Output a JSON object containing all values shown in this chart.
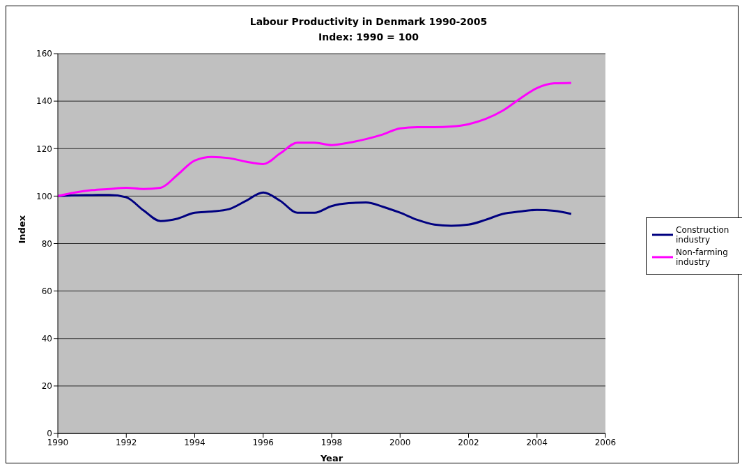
{
  "chart_data": {
    "type": "line",
    "title": "Labour Productivity in Denmark 1990-2005",
    "subtitle": "Index: 1990 = 100",
    "xlabel": "Year",
    "ylabel": "Index",
    "x": [
      1990,
      1990.5,
      1991,
      1991.5,
      1992,
      1992.5,
      1993,
      1993.5,
      1994,
      1994.5,
      1995,
      1995.5,
      1996,
      1996.5,
      1997,
      1997.5,
      1998,
      1998.5,
      1999,
      1999.5,
      2000,
      2000.5,
      2001,
      2001.5,
      2002,
      2002.5,
      2003,
      2003.5,
      2004,
      2004.5,
      2005
    ],
    "series": [
      {
        "name": "Construction industry",
        "color": "#000080",
        "values": [
          100,
          100.3,
          100.4,
          100.5,
          99.5,
          94,
          89.5,
          90.5,
          93,
          93.5,
          94.5,
          98,
          101.5,
          98,
          93,
          93,
          95.8,
          97,
          97.3,
          95.5,
          93,
          90,
          88,
          87.5,
          88,
          90,
          92.5,
          93.5,
          94.2,
          93.8,
          92.5
        ]
      },
      {
        "name": "Non-farming industry",
        "color": "#ff00ff",
        "values": [
          100,
          101.5,
          102.5,
          103,
          103.5,
          103,
          103.5,
          109,
          115,
          116.5,
          116,
          114.5,
          113.5,
          118,
          122.5,
          122.5,
          121.5,
          122.5,
          124,
          126,
          128.5,
          129,
          129,
          129.3,
          130.3,
          132.5,
          136,
          141,
          145.5,
          147.5,
          147.7
        ]
      }
    ],
    "xlim": [
      1990,
      2006
    ],
    "xticks": [
      1990,
      1992,
      1994,
      1996,
      1998,
      2000,
      2002,
      2004,
      2006
    ],
    "ylim": [
      0,
      160
    ],
    "yticks": [
      0,
      20,
      40,
      60,
      80,
      100,
      120,
      140,
      160
    ],
    "grid": "y",
    "legend": "right",
    "marker": "none",
    "line_style": "solid"
  }
}
